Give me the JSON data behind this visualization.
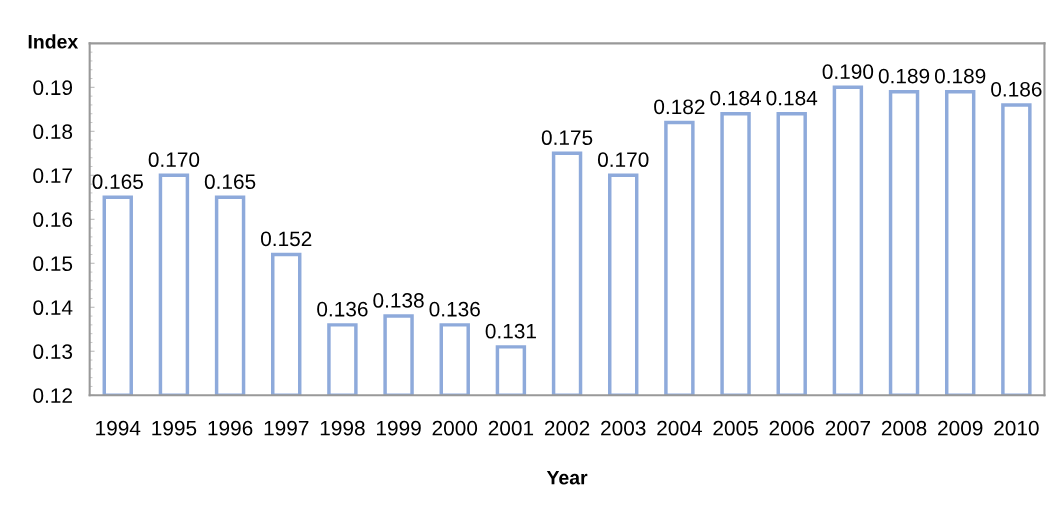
{
  "chart_data": {
    "type": "bar",
    "xlabel": "Year",
    "ylabel": "Index",
    "categories": [
      "1994",
      "1995",
      "1996",
      "1997",
      "1998",
      "1999",
      "2000",
      "2001",
      "2002",
      "2003",
      "2004",
      "2005",
      "2006",
      "2007",
      "2008",
      "2009",
      "2010"
    ],
    "values": [
      0.165,
      0.17,
      0.165,
      0.152,
      0.136,
      0.138,
      0.136,
      0.131,
      0.175,
      0.17,
      0.182,
      0.184,
      0.184,
      0.19,
      0.189,
      0.189,
      0.186
    ],
    "value_labels": [
      "0.165",
      "0.170",
      "0.165",
      "0.152",
      "0.136",
      "0.138",
      "0.136",
      "0.131",
      "0.175",
      "0.170",
      "0.182",
      "0.184",
      "0.184",
      "0.190",
      "0.189",
      "0.189",
      "0.186"
    ],
    "color": "#8eaadb",
    "ylim": [
      0.12,
      0.2
    ],
    "yticks": [
      0.12,
      0.13,
      0.14,
      0.15,
      0.16,
      0.17,
      0.18,
      0.19
    ],
    "grid": false,
    "legend": false
  }
}
